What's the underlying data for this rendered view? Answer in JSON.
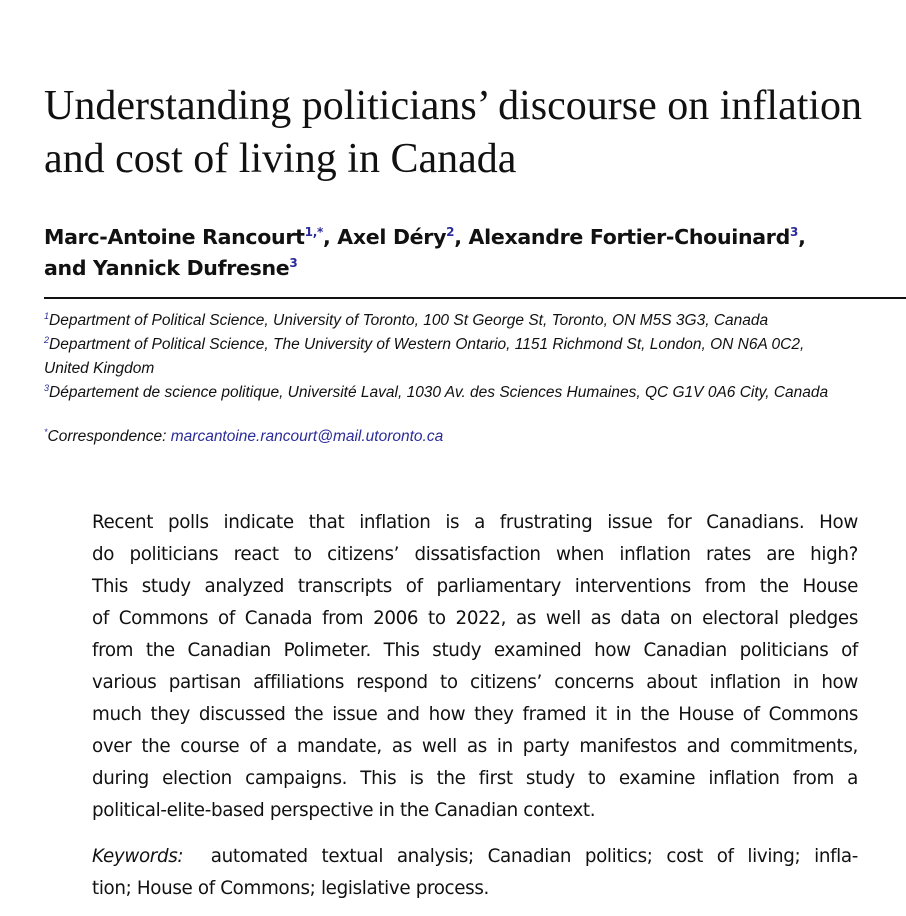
{
  "title_lines": [
    "Understanding politicians’ discourse on inflation",
    "and cost of living in Canada"
  ],
  "authors": [
    {
      "name": "Marc-Antoine Rancourt",
      "sup": "1,*"
    },
    {
      "name": "Axel Déry",
      "sup": "2"
    },
    {
      "name": "Alexandre Fortier-Chouinard",
      "sup": "3"
    },
    {
      "name": "and Yannick Dufresne",
      "sup": "3"
    }
  ],
  "affiliations": [
    {
      "sup": "1",
      "text": "Department of Political Science, University of Toronto, 100 St George St, Toronto, ON M5S 3G3, Canada"
    },
    {
      "sup": "2",
      "text": "Department of Political Science, The University of Western Ontario, 1151 Richmond St, London, ON N6A 0C2,",
      "cont": "United Kingdom"
    },
    {
      "sup": "3",
      "text": "Département de science politique, Université Laval, 1030 Av. des Sciences Humaines, QC G1V 0A6 City, Canada"
    }
  ],
  "correspondence": {
    "sup": "*",
    "label": "Correspondence:",
    "email": "marcantoine.rancourt@mail.utoronto.ca"
  },
  "abstract_lines": [
    "Recent polls indicate that inflation is a frustrating issue for Canadians. How",
    "do politicians react to citizens’ dissatisfaction when inflation rates are high?",
    "This study analyzed transcripts of parliamentary interventions from the House",
    "of Commons of Canada from 2006 to 2022, as well as data on electoral pledges",
    "from the Canadian Polimeter. This study examined how Canadian politicians of",
    "various partisan affiliations respond to citizens’ concerns about inflation in how",
    "much they discussed the issue and how they framed it in the House of Commons",
    "over the course of a mandate, as well as in party manifestos and commitments,",
    "during election campaigns. This is the first study to examine inflation from a",
    "political-elite-based perspective in the Canadian context."
  ],
  "keywords": {
    "label": "Keywords:",
    "lines": [
      "automated textual analysis; Canadian politics; cost of living;  infla-",
      "tion; House of Commons; legislative process."
    ]
  }
}
